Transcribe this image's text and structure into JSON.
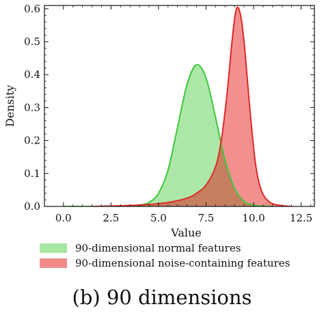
{
  "caption": "(b) 90 dimensions",
  "colors": {
    "normal_fill": "#a8e6a2",
    "normal_line": "#3cc83c",
    "noise_fill": "#f08a88",
    "noise_line": "#e02828",
    "overlap_fill": "#c6805f"
  },
  "chart_data": {
    "type": "area",
    "xlabel": "Value",
    "ylabel": "Density",
    "xlim": [
      -1,
      13.2
    ],
    "ylim": [
      0,
      0.61
    ],
    "xticks": [
      "0.0",
      "2.5",
      "5.0",
      "7.5",
      "10.0",
      "12.5"
    ],
    "xtick_values": [
      0,
      2.5,
      5,
      7.5,
      10,
      12.5
    ],
    "yticks": [
      "0.0",
      "0.1",
      "0.2",
      "0.3",
      "0.4",
      "0.5",
      "0.6"
    ],
    "ytick_values": [
      0,
      0.1,
      0.2,
      0.3,
      0.4,
      0.5,
      0.6
    ],
    "legend_position": "bottom",
    "grid": false,
    "series": [
      {
        "name": "90-dimensional normal features",
        "x": [
          0,
          3.5,
          4.0,
          4.5,
          5.0,
          5.5,
          6.0,
          6.5,
          7.0,
          7.5,
          8.0,
          8.5,
          9.0,
          9.5,
          10.0,
          10.5,
          11.0
        ],
        "y": [
          0,
          0,
          0.004,
          0.012,
          0.04,
          0.11,
          0.24,
          0.37,
          0.43,
          0.39,
          0.27,
          0.14,
          0.055,
          0.015,
          0.004,
          0.001,
          0
        ]
      },
      {
        "name": "90-dimensional noise-containing features",
        "x": [
          1.5,
          3.0,
          4.5,
          5.5,
          6.5,
          7.0,
          7.5,
          8.0,
          8.3,
          8.6,
          8.9,
          9.1,
          9.3,
          9.5,
          9.8,
          10.1,
          10.4,
          10.8,
          11.3,
          12.0
        ],
        "y": [
          0,
          0.002,
          0.006,
          0.012,
          0.025,
          0.04,
          0.065,
          0.12,
          0.2,
          0.34,
          0.52,
          0.6,
          0.585,
          0.5,
          0.3,
          0.13,
          0.05,
          0.015,
          0.004,
          0
        ]
      }
    ]
  }
}
